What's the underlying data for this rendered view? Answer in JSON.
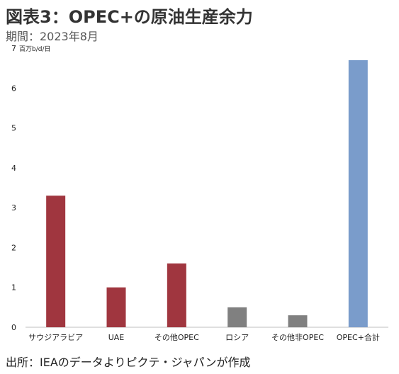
{
  "header": {
    "title": "図表3：OPEC+の原油生産余力",
    "subtitle": "期間：2023年8月"
  },
  "footer": {
    "source": "出所：IEAのデータよりピクテ・ジャパンが作成"
  },
  "chart_data": {
    "type": "bar",
    "unit_label": "百万b/d/日",
    "categories": [
      "サウジアラビア",
      "UAE",
      "その他OPEC",
      "ロシア",
      "その他非OPEC",
      "OPEC+合計"
    ],
    "values": [
      3.3,
      1.0,
      1.6,
      0.5,
      0.3,
      6.7
    ],
    "bar_colors": [
      "#A0363F",
      "#A0363F",
      "#A0363F",
      "#808080",
      "#808080",
      "#7A9CCB"
    ],
    "ylim": [
      0,
      7
    ],
    "yticks": [
      0,
      1,
      2,
      3,
      4,
      5,
      6,
      7
    ],
    "grid": false,
    "legend": "none"
  }
}
